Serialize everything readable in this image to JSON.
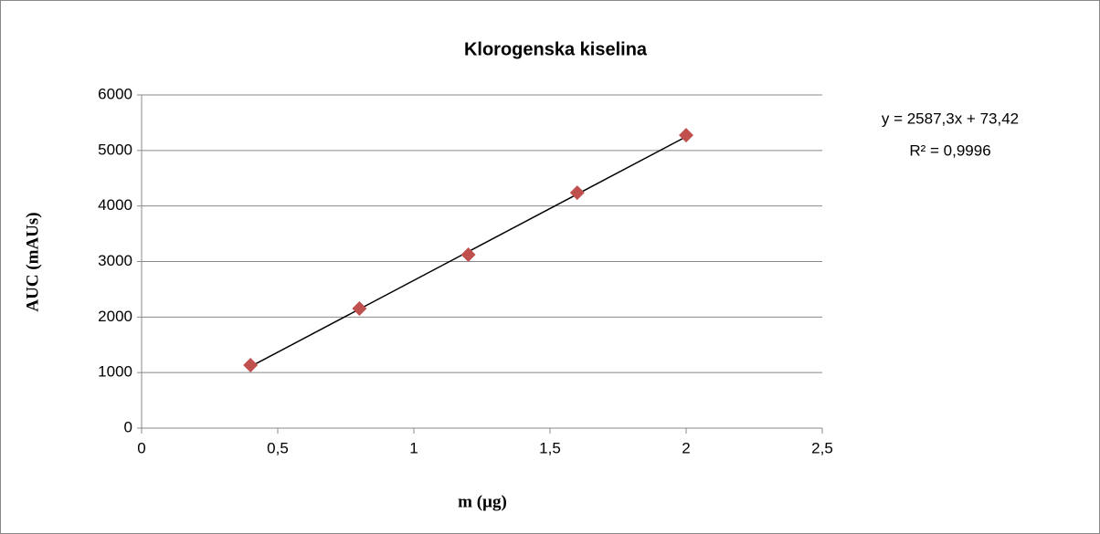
{
  "chart_data": {
    "type": "scatter",
    "title": "Klorogenska kiselina",
    "xlabel": "m (µg)",
    "ylabel": "AUC (mAUs)",
    "series": [
      {
        "name": "Klorogenska kiselina",
        "color": "#c0504d",
        "x": [
          0.4,
          0.8,
          1.2,
          1.6,
          2.0
        ],
        "values": [
          1134,
          2153,
          3123,
          4240,
          5275
        ]
      }
    ],
    "trendline": {
      "slope": 2587.3,
      "intercept": 73.42,
      "color": "#000000",
      "equation": "y = 2587,3x + 73,42",
      "r2": "R² = 0,9996"
    },
    "xlim": [
      0,
      2.5
    ],
    "xticks": [
      0,
      {
        "value": 0.5,
        "label": "0,5"
      },
      1,
      {
        "value": 1.5,
        "label": "1,5"
      },
      2,
      {
        "value": 2.5,
        "label": "2,5"
      }
    ],
    "ylim": [
      0,
      6000
    ],
    "yticks": [
      0,
      1000,
      2000,
      3000,
      4000,
      5000,
      6000
    ],
    "grid": true
  }
}
